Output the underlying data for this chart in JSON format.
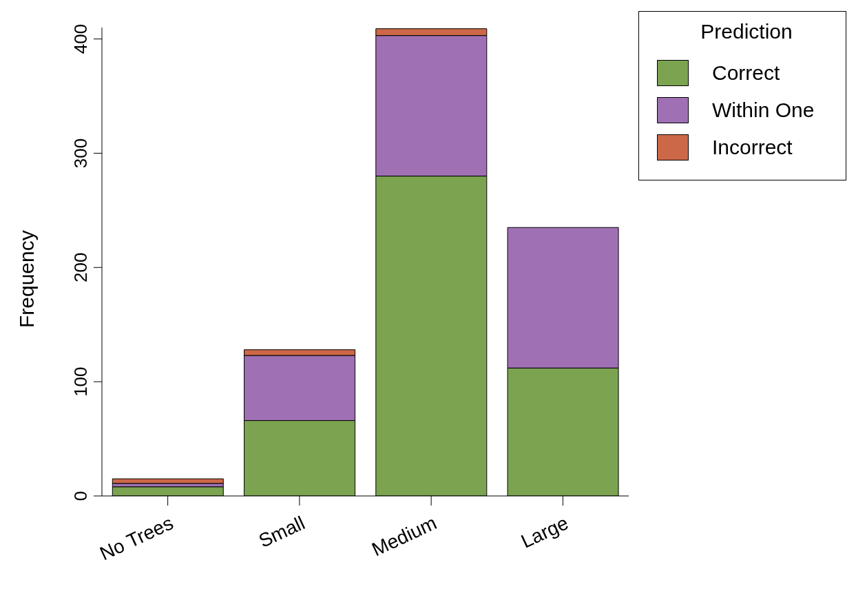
{
  "chart_data": {
    "type": "bar",
    "ylabel": "Frequency",
    "legend_title": "Prediction",
    "categories": [
      "No Trees",
      "Small",
      "Medium",
      "Large"
    ],
    "stacked": true,
    "legend": "top right",
    "grid": false,
    "ylim": [
      0,
      410
    ],
    "yticks": [
      0,
      100,
      200,
      300,
      400
    ],
    "series": [
      {
        "name": "Correct",
        "color": "#7ba350",
        "values": [
          8,
          66,
          280,
          112
        ]
      },
      {
        "name": "Within One",
        "color": "#a070b4",
        "values": [
          3,
          57,
          123,
          123
        ]
      },
      {
        "name": "Incorrect",
        "color": "#cc6848",
        "values": [
          4,
          5,
          6,
          0
        ]
      }
    ]
  }
}
